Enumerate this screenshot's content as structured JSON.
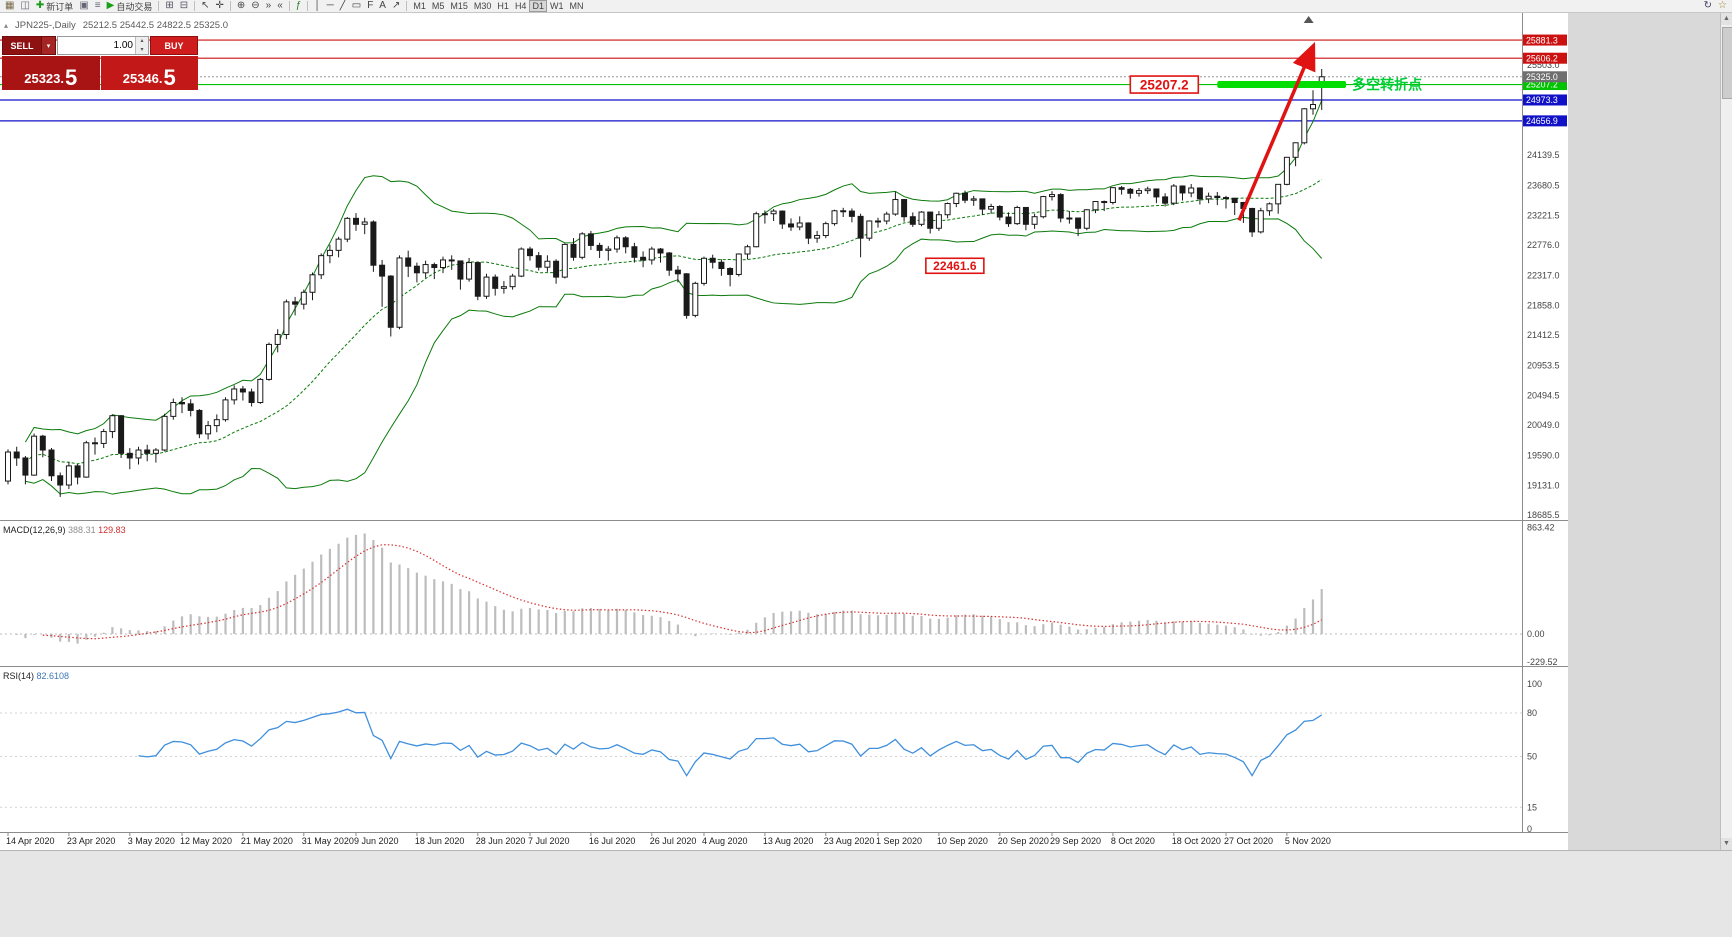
{
  "glyphs": {
    "collapse": "▴",
    "dropdown": "▾",
    "spin_up": "▴",
    "spin_down": "▾",
    "scroll_up": "▲",
    "scroll_down": "▼"
  },
  "toolbar": {
    "items": [
      {
        "name": "chart-window-button",
        "glyph": "▦",
        "color": "#7a6a4a"
      },
      {
        "name": "expand-chart-button",
        "glyph": "◫",
        "color": "#666677"
      },
      {
        "name": "new-order-button",
        "glyph": "✚",
        "color": "#1c9c1c",
        "label": "新订单"
      },
      {
        "name": "charts-menu-button",
        "glyph": "▣",
        "color": "#666677"
      },
      {
        "name": "profiles-button",
        "glyph": "≡",
        "color": "#666677"
      },
      {
        "name": "auto-trading-button",
        "glyph": "▶",
        "color": "#18a018",
        "label": "自动交易"
      },
      {
        "type": "sep"
      },
      {
        "name": "new-chart-button",
        "glyph": "⊞",
        "color": "#555566"
      },
      {
        "name": "tile-windows-button",
        "glyph": "⊟",
        "color": "#555566"
      },
      {
        "type": "sep"
      },
      {
        "name": "cursor-tool-button",
        "glyph": "↖",
        "color": "#444"
      },
      {
        "name": "crosshair-tool-button",
        "glyph": "✛",
        "color": "#444"
      },
      {
        "type": "sep"
      },
      {
        "name": "zoom-in-button",
        "glyph": "⊕",
        "color": "#444"
      },
      {
        "name": "zoom-out-button",
        "glyph": "⊖",
        "color": "#444"
      },
      {
        "name": "auto-scroll-button",
        "glyph": "»",
        "color": "#444"
      },
      {
        "name": "chart-shift-button",
        "glyph": "«",
        "color": "#444"
      },
      {
        "type": "sep"
      },
      {
        "name": "indicators-button",
        "glyph": "ƒ",
        "color": "#2a7a2a"
      },
      {
        "type": "sep"
      },
      {
        "name": "vertical-line-tool",
        "glyph": "│",
        "color": "#444"
      },
      {
        "name": "horizontal-line-tool",
        "glyph": "─",
        "color": "#444"
      },
      {
        "name": "trendline-tool",
        "glyph": "╱",
        "color": "#444"
      },
      {
        "name": "channel-tool",
        "glyph": "▭",
        "color": "#444"
      },
      {
        "name": "fibonacci-tool",
        "glyph": "F",
        "color": "#444"
      },
      {
        "name": "text-tool",
        "glyph": "A",
        "color": "#444"
      },
      {
        "name": "arrows-tool",
        "glyph": "↗",
        "color": "#444"
      },
      {
        "type": "sep"
      },
      {
        "name": "timeframe-m1",
        "tf": "M1"
      },
      {
        "name": "timeframe-m5",
        "tf": "M5"
      },
      {
        "name": "timeframe-m15",
        "tf": "M15"
      },
      {
        "name": "timeframe-m30",
        "tf": "M30"
      },
      {
        "name": "timeframe-h1",
        "tf": "H1"
      },
      {
        "name": "timeframe-h4",
        "tf": "H4"
      },
      {
        "name": "timeframe-d1",
        "tf": "D1",
        "active": true
      },
      {
        "name": "timeframe-w1",
        "tf": "W1"
      },
      {
        "name": "timeframe-mn",
        "tf": "MN"
      },
      {
        "side": "right",
        "name": "refresh-button",
        "glyph": "↻",
        "color": "#446"
      },
      {
        "side": "right",
        "name": "favorites-button",
        "glyph": "☆",
        "color": "#977a20"
      }
    ]
  },
  "chart": {
    "title": "JPN225-,Daily",
    "ohlc": "25212.5 25442.5 24822.5 25325.0"
  },
  "trade_panel": {
    "sell_label": "SELL",
    "buy_label": "BUY",
    "volume": "1.00",
    "sell_price_main": "25323.",
    "sell_price_big": "5",
    "buy_price_main": "25346.",
    "buy_price_big": "5"
  },
  "indicators": {
    "macd": {
      "label": "MACD(12,26,9)",
      "main": "388.31",
      "signal": "129.83"
    },
    "rsi": {
      "label": "RSI(14)",
      "value": "82.6108"
    }
  },
  "chart_data": {
    "type": "candlestick",
    "symbol": "JPN225-",
    "period": "Daily",
    "ylim": [
      18610,
      26276
    ],
    "candles": [
      [
        19200,
        19680,
        19150,
        19640
      ],
      [
        19640,
        19720,
        19430,
        19550
      ],
      [
        19550,
        19580,
        19150,
        19290
      ],
      [
        19290,
        19920,
        19280,
        19880
      ],
      [
        19880,
        19900,
        19560,
        19670
      ],
      [
        19670,
        19700,
        19200,
        19280
      ],
      [
        19280,
        19330,
        18960,
        19140
      ],
      [
        19140,
        19490,
        19080,
        19430
      ],
      [
        19430,
        19460,
        19150,
        19260
      ],
      [
        19260,
        19810,
        19250,
        19780
      ],
      [
        19780,
        19860,
        19600,
        19770
      ],
      [
        19770,
        19990,
        19700,
        19950
      ],
      [
        19950,
        20210,
        19850,
        20190
      ],
      [
        20190,
        20200,
        19550,
        19620
      ],
      [
        19620,
        19700,
        19380,
        19550
      ],
      [
        19550,
        19720,
        19450,
        19670
      ],
      [
        19670,
        19750,
        19500,
        19620
      ],
      [
        19620,
        19700,
        19480,
        19670
      ],
      [
        19670,
        20220,
        19650,
        20180
      ],
      [
        20180,
        20450,
        20130,
        20390
      ],
      [
        20390,
        20470,
        20230,
        20370
      ],
      [
        20370,
        20440,
        20180,
        20270
      ],
      [
        20270,
        20290,
        19850,
        19915
      ],
      [
        19915,
        20110,
        19830,
        20040
      ],
      [
        20040,
        20210,
        19940,
        20130
      ],
      [
        20130,
        20470,
        20100,
        20430
      ],
      [
        20430,
        20650,
        20360,
        20595
      ],
      [
        20595,
        20640,
        20420,
        20550
      ],
      [
        20550,
        20600,
        20330,
        20390
      ],
      [
        20390,
        20760,
        20370,
        20740
      ],
      [
        20740,
        21300,
        20720,
        21270
      ],
      [
        21270,
        21500,
        21150,
        21420
      ],
      [
        21420,
        21950,
        21350,
        21915
      ],
      [
        21915,
        21990,
        21710,
        21880
      ],
      [
        21880,
        22100,
        21800,
        22060
      ],
      [
        22060,
        22360,
        21940,
        22325
      ],
      [
        22325,
        22650,
        22260,
        22615
      ],
      [
        22615,
        22780,
        22500,
        22695
      ],
      [
        22695,
        22900,
        22590,
        22865
      ],
      [
        22865,
        23200,
        22820,
        23180
      ],
      [
        23180,
        23260,
        22990,
        23090
      ],
      [
        23090,
        23190,
        22940,
        23125
      ],
      [
        23125,
        23150,
        22370,
        22470
      ],
      [
        22470,
        22550,
        21840,
        22305
      ],
      [
        22305,
        22320,
        21390,
        21530
      ],
      [
        21530,
        22620,
        21500,
        22580
      ],
      [
        22580,
        22690,
        22290,
        22455
      ],
      [
        22455,
        22510,
        22210,
        22355
      ],
      [
        22355,
        22540,
        22280,
        22480
      ],
      [
        22480,
        22510,
        22260,
        22435
      ],
      [
        22435,
        22600,
        22350,
        22550
      ],
      [
        22550,
        22620,
        22400,
        22535
      ],
      [
        22535,
        22540,
        22100,
        22260
      ],
      [
        22260,
        22580,
        22220,
        22510
      ],
      [
        22510,
        22520,
        21940,
        22000
      ],
      [
        22000,
        22340,
        21960,
        22290
      ],
      [
        22290,
        22330,
        22010,
        22120
      ],
      [
        22120,
        22230,
        22040,
        22145
      ],
      [
        22145,
        22340,
        22100,
        22305
      ],
      [
        22305,
        22740,
        22290,
        22715
      ],
      [
        22715,
        22750,
        22540,
        22615
      ],
      [
        22615,
        22670,
        22390,
        22440
      ],
      [
        22440,
        22620,
        22370,
        22530
      ],
      [
        22530,
        22560,
        22190,
        22290
      ],
      [
        22290,
        22800,
        22270,
        22785
      ],
      [
        22785,
        22880,
        22540,
        22590
      ],
      [
        22590,
        22970,
        22560,
        22945
      ],
      [
        22945,
        22990,
        22700,
        22770
      ],
      [
        22770,
        22810,
        22580,
        22695
      ],
      [
        22695,
        22760,
        22540,
        22715
      ],
      [
        22715,
        22920,
        22660,
        22885
      ],
      [
        22885,
        22910,
        22650,
        22750
      ],
      [
        22750,
        22810,
        22510,
        22590
      ],
      [
        22590,
        22680,
        22440,
        22550
      ],
      [
        22550,
        22750,
        22480,
        22715
      ],
      [
        22715,
        22730,
        22510,
        22655
      ],
      [
        22655,
        22670,
        22310,
        22395
      ],
      [
        22395,
        22460,
        22210,
        22340
      ],
      [
        22340,
        22350,
        21660,
        21710
      ],
      [
        21710,
        22220,
        21680,
        22195
      ],
      [
        22195,
        22600,
        22160,
        22575
      ],
      [
        22575,
        22630,
        22420,
        22515
      ],
      [
        22515,
        22560,
        22310,
        22420
      ],
      [
        22420,
        22440,
        22150,
        22330
      ],
      [
        22330,
        22650,
        22300,
        22640
      ],
      [
        22640,
        22780,
        22560,
        22750
      ],
      [
        22750,
        23280,
        22740,
        23250
      ],
      [
        23250,
        23300,
        23100,
        23250
      ],
      [
        23250,
        23320,
        23140,
        23290
      ],
      [
        23290,
        23300,
        23020,
        23095
      ],
      [
        23095,
        23180,
        22990,
        23050
      ],
      [
        23050,
        23210,
        23000,
        23110
      ],
      [
        23110,
        23120,
        22790,
        22880
      ],
      [
        22880,
        22990,
        22810,
        22920
      ],
      [
        22920,
        23130,
        22880,
        23100
      ],
      [
        23100,
        23310,
        23070,
        23295
      ],
      [
        23295,
        23340,
        23200,
        23290
      ],
      [
        23290,
        23330,
        23120,
        23210
      ],
      [
        23210,
        23250,
        22590,
        22880
      ],
      [
        22880,
        23150,
        22840,
        23140
      ],
      [
        23140,
        23190,
        23040,
        23140
      ],
      [
        23140,
        23280,
        23090,
        23245
      ],
      [
        23245,
        23580,
        23220,
        23465
      ],
      [
        23465,
        23470,
        23130,
        23205
      ],
      [
        23205,
        23270,
        23050,
        23090
      ],
      [
        23090,
        23290,
        23060,
        23275
      ],
      [
        23275,
        23280,
        22950,
        23030
      ],
      [
        23030,
        23290,
        22990,
        23235
      ],
      [
        23235,
        23420,
        23180,
        23405
      ],
      [
        23405,
        23570,
        23350,
        23560
      ],
      [
        23560,
        23600,
        23410,
        23455
      ],
      [
        23455,
        23520,
        23370,
        23475
      ],
      [
        23475,
        23480,
        23230,
        23320
      ],
      [
        23320,
        23400,
        23250,
        23360
      ],
      [
        23360,
        23380,
        23150,
        23200
      ],
      [
        23200,
        23270,
        23050,
        23100
      ],
      [
        23100,
        23370,
        23080,
        23345
      ],
      [
        23345,
        23350,
        23000,
        23090
      ],
      [
        23090,
        23250,
        23020,
        23205
      ],
      [
        23205,
        23520,
        23180,
        23510
      ],
      [
        23510,
        23590,
        23450,
        23540
      ],
      [
        23540,
        23560,
        23120,
        23185
      ],
      [
        23185,
        23290,
        23100,
        23185
      ],
      [
        23185,
        23190,
        22910,
        23030
      ],
      [
        23030,
        23320,
        23000,
        23310
      ],
      [
        23310,
        23440,
        23260,
        23435
      ],
      [
        23435,
        23450,
        23290,
        23420
      ],
      [
        23420,
        23650,
        23390,
        23645
      ],
      [
        23645,
        23670,
        23540,
        23620
      ],
      [
        23620,
        23640,
        23480,
        23560
      ],
      [
        23560,
        23640,
        23510,
        23600
      ],
      [
        23600,
        23660,
        23550,
        23625
      ],
      [
        23625,
        23630,
        23410,
        23505
      ],
      [
        23505,
        23560,
        23360,
        23410
      ],
      [
        23410,
        23700,
        23380,
        23670
      ],
      [
        23670,
        23680,
        23450,
        23565
      ],
      [
        23565,
        23700,
        23500,
        23640
      ],
      [
        23640,
        23650,
        23390,
        23475
      ],
      [
        23475,
        23570,
        23410,
        23515
      ],
      [
        23515,
        23580,
        23380,
        23495
      ],
      [
        23495,
        23520,
        23330,
        23485
      ],
      [
        23485,
        23490,
        23230,
        23420
      ],
      [
        23420,
        23430,
        23110,
        23330
      ],
      [
        23330,
        23340,
        22900,
        22975
      ],
      [
        22975,
        23340,
        22950,
        23295
      ],
      [
        23295,
        23420,
        23220,
        23400
      ],
      [
        23400,
        23700,
        23250,
        23695
      ],
      [
        23695,
        24110,
        23680,
        24105
      ],
      [
        24105,
        24330,
        23970,
        24325
      ],
      [
        24325,
        24850,
        24300,
        24840
      ],
      [
        24840,
        25120,
        24750,
        24905
      ],
      [
        25212.5,
        25442.5,
        24822.5,
        25325
      ]
    ],
    "date_labels": [
      [
        0,
        "14 Apr 2020"
      ],
      [
        7,
        "23 Apr 2020"
      ],
      [
        14,
        "3 May 2020"
      ],
      [
        20,
        "12 May 2020"
      ],
      [
        27,
        "21 May 2020"
      ],
      [
        34,
        "31 May 2020"
      ],
      [
        40,
        "9 Jun 2020"
      ],
      [
        47,
        "18 Jun 2020"
      ],
      [
        54,
        "28 Jun 2020"
      ],
      [
        60,
        "7 Jul 2020"
      ],
      [
        67,
        "16 Jul 2020"
      ],
      [
        74,
        "26 Jul 2020"
      ],
      [
        80,
        "4 Aug 2020"
      ],
      [
        87,
        "13 Aug 2020"
      ],
      [
        94,
        "23 Aug 2020"
      ],
      [
        100,
        "1 Sep 2020"
      ],
      [
        107,
        "10 Sep 2020"
      ],
      [
        114,
        "20 Sep 2020"
      ],
      [
        120,
        "29 Sep 2020"
      ],
      [
        127,
        "8 Oct 2020"
      ],
      [
        134,
        "18 Oct 2020"
      ],
      [
        140,
        "27 Oct 2020"
      ],
      [
        147,
        "5 Nov 2020"
      ]
    ],
    "price_ticks": [
      "25503.0",
      "24139.5",
      "23680.5",
      "23221.5",
      "22776.0",
      "22317.0",
      "21858.0",
      "21412.5",
      "20953.5",
      "20494.5",
      "20049.0",
      "19590.0",
      "19131.0",
      "18685.5"
    ],
    "price_lines": [
      {
        "price": 25881.3,
        "label": "25881.3",
        "color": "#cc1111"
      },
      {
        "price": 25606.2,
        "label": "25606.2",
        "color": "#cc1111"
      },
      {
        "price": 25207.2,
        "label": "25207.2",
        "color": "#00c400"
      },
      {
        "price": 24973.3,
        "label": "24973.3",
        "color": "#1111c8"
      },
      {
        "price": 24656.9,
        "label": "24656.9",
        "color": "#1111c8"
      }
    ],
    "current_price": {
      "value": 25325,
      "label": "25325.0",
      "label_bg": "#6f6f6f"
    },
    "bollinger": {
      "period": 20,
      "deviation": 2,
      "color": "#0a7a0a"
    },
    "macd": {
      "params": [
        12,
        26,
        9
      ],
      "ylim": [
        -260,
        910
      ],
      "tick_labels": [
        "863.42",
        "0.00",
        "-229.52"
      ],
      "tick_values": [
        863.42,
        0,
        -229.52
      ],
      "hist_color": "#bdbdbd",
      "signal_color": "#d83030"
    },
    "rsi": {
      "period": 14,
      "tick_labels": [
        "100",
        "80",
        "50",
        "15",
        "0"
      ],
      "tick_values": [
        100,
        80,
        50,
        15,
        0
      ],
      "levels": [
        80,
        50,
        15
      ],
      "color": "#3f8fdc"
    },
    "annotations": {
      "highlight_segment": {
        "price": 25207.2,
        "i1": 139,
        "i2": 153.8,
        "thickness": 7,
        "color": "#00de00"
      },
      "trend_arrow": {
        "i1": 141.5,
        "price1": 23150,
        "i2": 150,
        "price2": 25780,
        "color": "#e01212",
        "width": 3.5
      },
      "boxes": [
        {
          "text": "25207.2",
          "i": 129,
          "price": 25207.2,
          "w": 68,
          "h": 17,
          "font": 13.5,
          "color": "#e01212"
        },
        {
          "text": "22461.6",
          "i": 105.5,
          "price": 22461.6,
          "w": 58,
          "h": 15,
          "font": 12,
          "color": "#e01212"
        }
      ],
      "texts": [
        {
          "text": "多空转折点",
          "i": 154.5,
          "price": 25207.2,
          "font": 14,
          "color": "#00cc33"
        }
      ],
      "shift_marker_i": 149.5
    }
  }
}
